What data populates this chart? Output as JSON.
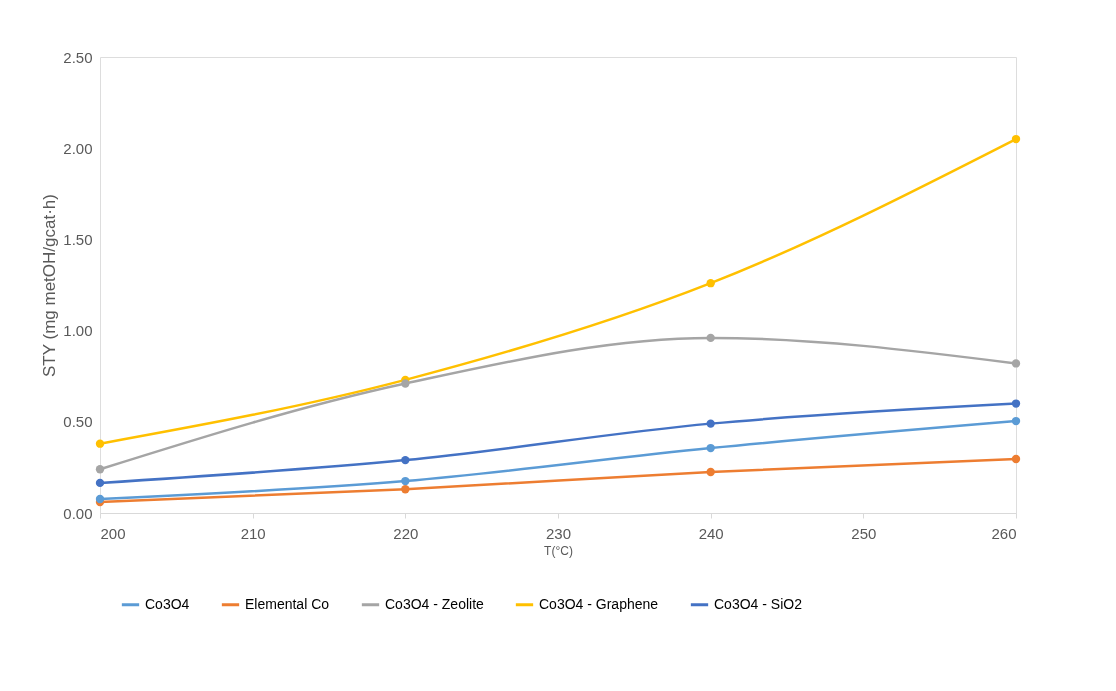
{
  "chart_data": {
    "type": "line",
    "xlabel": "T(°C)",
    "ylabel": "STY (mg metOH/gcat·h)",
    "x": [
      200,
      220,
      240,
      260
    ],
    "series": [
      {
        "name": "Co3O4",
        "color": "#5b9bd5",
        "values": [
          0.077,
          0.175,
          0.356,
          0.504
        ]
      },
      {
        "name": "Elemental Co",
        "color": "#ed7d31",
        "values": [
          0.06,
          0.13,
          0.225,
          0.296
        ]
      },
      {
        "name": "Co3O4 - Zeolite",
        "color": "#a5a5a5",
        "values": [
          0.24,
          0.71,
          0.96,
          0.82
        ]
      },
      {
        "name": "Co3O4 - Graphene",
        "color": "#ffc000",
        "values": [
          0.38,
          0.73,
          1.26,
          2.05
        ]
      },
      {
        "name": "Co3O4 - SiO2",
        "color": "#4472c4",
        "values": [
          0.165,
          0.29,
          0.49,
          0.6
        ]
      }
    ],
    "xlim": [
      200,
      260
    ],
    "xticks": [
      200,
      210,
      220,
      230,
      240,
      250,
      260
    ],
    "ylim": [
      0,
      2.5
    ],
    "yticks": [
      {
        "value": 0,
        "label": "0.00"
      },
      {
        "value": 0.5,
        "label": "0.50"
      },
      {
        "value": 1,
        "label": "1.00"
      },
      {
        "value": 1.5,
        "label": "1.50"
      },
      {
        "value": 2,
        "label": "2.00"
      },
      {
        "value": 2.5,
        "label": "2.50"
      }
    ],
    "grid": false,
    "legend": "bottom",
    "marker": "circle",
    "line_style": "solid"
  }
}
